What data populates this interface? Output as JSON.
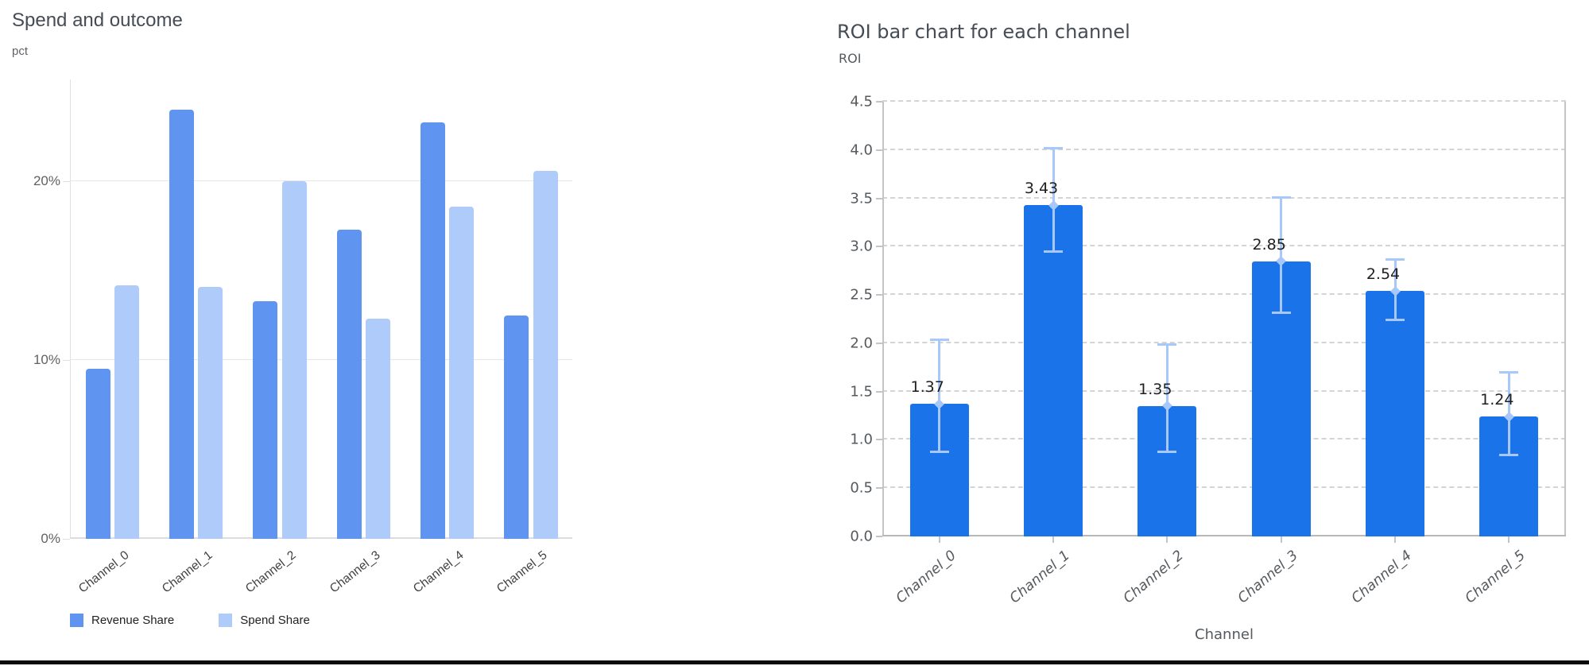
{
  "chart_data": [
    {
      "type": "bar",
      "title": "Spend and outcome",
      "ylabel": "pct",
      "xlabel": "",
      "categories": [
        "Channel_0",
        "Channel_1",
        "Channel_2",
        "Channel_3",
        "Channel_4",
        "Channel_5"
      ],
      "series": [
        {
          "name": "Revenue Share",
          "color": "#5f94f0",
          "values": [
            9.5,
            24.0,
            13.3,
            17.3,
            23.3,
            12.5
          ]
        },
        {
          "name": "Spend Share",
          "color": "#aecbfa",
          "values": [
            14.2,
            14.1,
            20.0,
            12.3,
            18.6,
            20.6
          ]
        }
      ],
      "yticks": [
        {
          "v": 0,
          "label": "0%"
        },
        {
          "v": 10,
          "label": "10%"
        },
        {
          "v": 20,
          "label": "20%"
        }
      ],
      "ylim": [
        0,
        25
      ],
      "grid": "horizontal-solid",
      "legend_position": "bottom-left"
    },
    {
      "type": "bar",
      "title": "ROI bar chart for each channel",
      "ylabel": "ROI",
      "xlabel": "Channel",
      "categories": [
        "Channel_0",
        "Channel_1",
        "Channel_2",
        "Channel_3",
        "Channel_4",
        "Channel_5"
      ],
      "values": [
        1.37,
        3.43,
        1.35,
        2.85,
        2.54,
        1.24
      ],
      "data_labels": [
        "1.37",
        "3.43",
        "1.35",
        "2.85",
        "2.54",
        "1.24"
      ],
      "error_low": [
        0.88,
        2.95,
        0.88,
        2.32,
        2.24,
        0.84
      ],
      "error_high": [
        2.04,
        4.02,
        1.99,
        3.51,
        2.87,
        1.7
      ],
      "yticks": [
        "0.0",
        "0.5",
        "1.0",
        "1.5",
        "2.0",
        "2.5",
        "3.0",
        "3.5",
        "4.0",
        "4.5"
      ],
      "ylim": [
        0,
        4.5
      ],
      "bar_color": "#1a73e8",
      "error_color": "#a8c7fa",
      "grid": "horizontal-dashed",
      "legend_position": "none"
    }
  ]
}
